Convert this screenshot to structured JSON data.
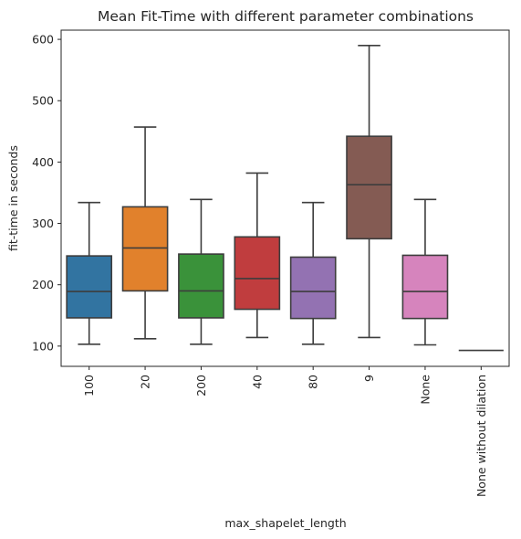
{
  "chart_data": {
    "type": "box",
    "title": "Mean Fit-Time with different parameter combinations",
    "xlabel": "max_shapelet_length",
    "ylabel": "fit-time in seconds",
    "ylim": [
      67,
      615
    ],
    "yticks": [
      100,
      200,
      300,
      400,
      500,
      600
    ],
    "grid": false,
    "categories": [
      "100",
      "20",
      "200",
      "40",
      "80",
      "9",
      "None",
      "None without dilation"
    ],
    "boxes": [
      {
        "category": "100",
        "whisker_low": 103,
        "q1": 146,
        "median": 189,
        "q3": 247,
        "whisker_high": 334,
        "color": "#3274a1"
      },
      {
        "category": "20",
        "whisker_low": 112,
        "q1": 190,
        "median": 260,
        "q3": 327,
        "whisker_high": 457,
        "color": "#e1812c"
      },
      {
        "category": "200",
        "whisker_low": 103,
        "q1": 146,
        "median": 190,
        "q3": 250,
        "whisker_high": 339,
        "color": "#3a923a"
      },
      {
        "category": "40",
        "whisker_low": 114,
        "q1": 160,
        "median": 210,
        "q3": 278,
        "whisker_high": 382,
        "color": "#c03d3e"
      },
      {
        "category": "80",
        "whisker_low": 103,
        "q1": 145,
        "median": 189,
        "q3": 245,
        "whisker_high": 334,
        "color": "#9372b2"
      },
      {
        "category": "9",
        "whisker_low": 114,
        "q1": 275,
        "median": 363,
        "q3": 442,
        "whisker_high": 590,
        "color": "#845b53"
      },
      {
        "category": "None",
        "whisker_low": 102,
        "q1": 145,
        "median": 189,
        "q3": 248,
        "whisker_high": 339,
        "color": "#d684bd"
      },
      {
        "category": "None without dilation",
        "whisker_low": 93,
        "q1": 93,
        "median": 93,
        "q3": 93,
        "whisker_high": 93,
        "color": "#7f7f7f"
      }
    ]
  }
}
